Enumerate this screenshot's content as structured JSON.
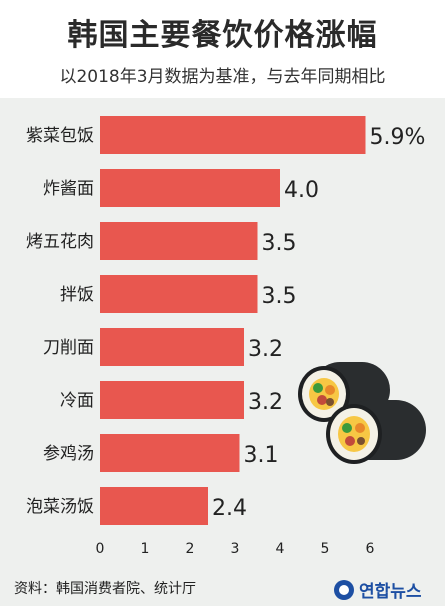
{
  "header": {
    "title": "韩国主要餐饮价格涨幅",
    "subtitle": "以2018年3月数据为基准，与去年同期相比"
  },
  "footer": {
    "source": "资料：韩国消费者院、统计厅",
    "logo_text": "연합뉴스"
  },
  "colors": {
    "bar": "#e8574f",
    "panel": "#eef0ee",
    "accent": "#1d4fa3"
  },
  "chart_data": {
    "type": "bar",
    "orientation": "horizontal",
    "categories": [
      "紫菜包饭",
      "炸酱面",
      "烤五花肉",
      "拌饭",
      "刀削面",
      "冷面",
      "参鸡汤",
      "泡菜汤饭"
    ],
    "values": [
      5.9,
      4.0,
      3.5,
      3.5,
      3.2,
      3.2,
      3.1,
      2.4
    ],
    "value_labels": [
      "5.9%",
      "4.0",
      "3.5",
      "3.5",
      "3.2",
      "3.2",
      "3.1",
      "2.4"
    ],
    "xlim": [
      0,
      6
    ],
    "xticks": [
      "0",
      "1",
      "2",
      "3",
      "4",
      "5",
      "6"
    ],
    "grid": false,
    "legend": "none"
  }
}
